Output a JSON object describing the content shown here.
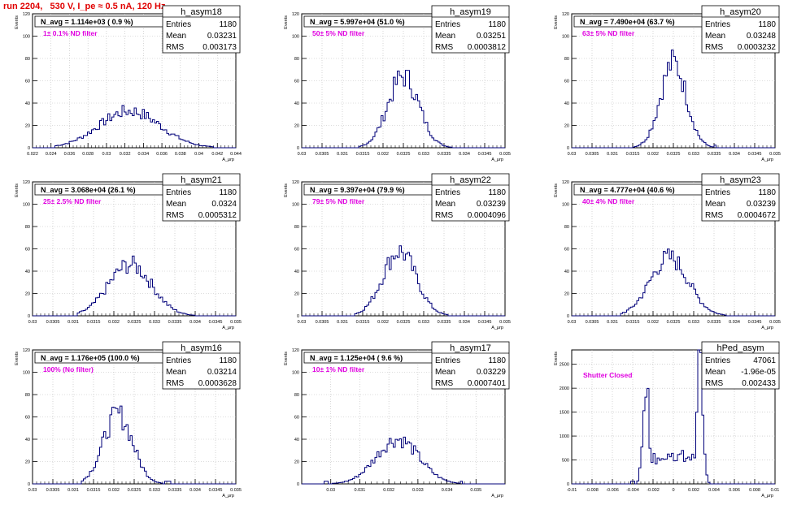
{
  "page": {
    "title": "run 2204,   530 V, I_pe ≈ 0.5 nA, 120 Hz"
  },
  "colors": {
    "hist": "#00007a",
    "annot": "#e000e0",
    "title": "#e00000",
    "grid": "#bbbbbb"
  },
  "chart_data": [
    {
      "type": "histogram",
      "name": "h_asym18",
      "title": "N_avg = 1.114e+03 ( 0.9 %)",
      "annotation": "1± 0.1% ND filter",
      "stats": {
        "Entries": "1180",
        "Mean": "0.03231",
        "RMS": "0.003173"
      },
      "xlabel": "A_μrp",
      "ylabel": "Events",
      "xlim": [
        0.022,
        0.044
      ],
      "ylim": [
        0,
        120
      ],
      "xticks": [
        "0.022",
        "0.024",
        "0.026",
        "0.028",
        "0.03",
        "0.032",
        "0.034",
        "0.036",
        "0.038",
        "0.04",
        "0.042",
        "0.044"
      ],
      "yticks": [
        "0",
        "20",
        "40",
        "60",
        "80",
        "100",
        "120"
      ],
      "peaks": [
        {
          "x": 0.0325,
          "w": 0.0033,
          "h": 33
        }
      ],
      "bin_lim": [
        0.0245,
        0.0415
      ]
    },
    {
      "type": "histogram",
      "name": "h_asym19",
      "title": "N_avg = 5.997e+04 (51.0 %)",
      "annotation": "50± 5% ND filter",
      "stats": {
        "Entries": "1180",
        "Mean": "0.03251",
        "RMS": "0.0003812"
      },
      "xlabel": "A_μrp",
      "ylabel": "Events",
      "xlim": [
        0.03,
        0.035
      ],
      "ylim": [
        0,
        120
      ],
      "xticks": [
        "0.03",
        "0.0305",
        "0.031",
        "0.0315",
        "0.032",
        "0.0325",
        "0.033",
        "0.0335",
        "0.034",
        "0.0345",
        "0.035"
      ],
      "yticks": [
        "0",
        "20",
        "40",
        "60",
        "80",
        "100",
        "120"
      ],
      "peaks": [
        {
          "x": 0.0325,
          "w": 0.00038,
          "h": 64
        }
      ],
      "bin_lim": [
        0.0314,
        0.0337
      ]
    },
    {
      "type": "histogram",
      "name": "h_asym20",
      "title": "N_avg = 7.490e+04 (63.7 %)",
      "annotation": "63± 5% ND filter",
      "stats": {
        "Entries": "1180",
        "Mean": "0.03248",
        "RMS": "0.0003232"
      },
      "xlabel": "A_μrp",
      "ylabel": "Events",
      "xlim": [
        0.03,
        0.035
      ],
      "ylim": [
        0,
        120
      ],
      "xticks": [
        "0.03",
        "0.0305",
        "0.031",
        "0.0315",
        "0.032",
        "0.0325",
        "0.033",
        "0.0335",
        "0.034",
        "0.0345",
        "0.035"
      ],
      "yticks": [
        "0",
        "20",
        "40",
        "60",
        "80",
        "100",
        "120"
      ],
      "peaks": [
        {
          "x": 0.0325,
          "w": 0.00032,
          "h": 76
        }
      ],
      "bin_lim": [
        0.0315,
        0.0336
      ]
    },
    {
      "type": "histogram",
      "name": "h_asym21",
      "title": "N_avg = 3.068e+04 (26.1 %)",
      "annotation": "25± 2.5% ND filter",
      "stats": {
        "Entries": "1180",
        "Mean": "0.0324",
        "RMS": "0.0005312"
      },
      "xlabel": "A_μrp",
      "ylabel": "Events",
      "xlim": [
        0.03,
        0.035
      ],
      "ylim": [
        0,
        120
      ],
      "xticks": [
        "0.03",
        "0.0305",
        "0.031",
        "0.0315",
        "0.032",
        "0.0325",
        "0.033",
        "0.0335",
        "0.034",
        "0.0345",
        "0.035"
      ],
      "yticks": [
        "0",
        "20",
        "40",
        "60",
        "80",
        "100",
        "120"
      ],
      "peaks": [
        {
          "x": 0.0324,
          "w": 0.00053,
          "h": 46
        }
      ],
      "bin_lim": [
        0.0311,
        0.034
      ]
    },
    {
      "type": "histogram",
      "name": "h_asym22",
      "title": "N_avg = 9.397e+04 (79.9 %)",
      "annotation": "79± 5% ND filter",
      "stats": {
        "Entries": "1180",
        "Mean": "0.03239",
        "RMS": "0.0004096"
      },
      "xlabel": "A_μrp",
      "ylabel": "Events",
      "xlim": [
        0.03,
        0.035
      ],
      "ylim": [
        0,
        120
      ],
      "xticks": [
        "0.03",
        "0.0305",
        "0.031",
        "0.0315",
        "0.032",
        "0.0325",
        "0.033",
        "0.0335",
        "0.034",
        "0.0345",
        "0.035"
      ],
      "yticks": [
        "0",
        "20",
        "40",
        "60",
        "80",
        "100",
        "120"
      ],
      "peaks": [
        {
          "x": 0.0324,
          "w": 0.00041,
          "h": 58
        }
      ],
      "bin_lim": [
        0.0313,
        0.0336
      ]
    },
    {
      "type": "histogram",
      "name": "h_asym23",
      "title": "N_avg = 4.777e+04 (40.6 %)",
      "annotation": "40± 4% ND filter",
      "stats": {
        "Entries": "1180",
        "Mean": "0.03239",
        "RMS": "0.0004672"
      },
      "xlabel": "A_μrp",
      "ylabel": "Events",
      "xlim": [
        0.03,
        0.035
      ],
      "ylim": [
        0,
        120
      ],
      "xticks": [
        "0.03",
        "0.0305",
        "0.031",
        "0.0315",
        "0.032",
        "0.0325",
        "0.033",
        "0.0335",
        "0.034",
        "0.0345",
        "0.035"
      ],
      "yticks": [
        "0",
        "20",
        "40",
        "60",
        "80",
        "100",
        "120"
      ],
      "peaks": [
        {
          "x": 0.0324,
          "w": 0.00047,
          "h": 52
        }
      ],
      "bin_lim": [
        0.0312,
        0.0338
      ]
    },
    {
      "type": "histogram",
      "name": "h_asym16",
      "title": "N_avg = 1.176e+05 (100.0 %)",
      "annotation": "100% (No filter)",
      "stats": {
        "Entries": "1180",
        "Mean": "0.03214",
        "RMS": "0.0003628"
      },
      "xlabel": "A_μrp",
      "ylabel": "Events",
      "xlim": [
        0.03,
        0.035
      ],
      "ylim": [
        0,
        120
      ],
      "xticks": [
        "0.03",
        "0.0305",
        "0.031",
        "0.0315",
        "0.032",
        "0.0325",
        "0.033",
        "0.0335",
        "0.034",
        "0.0345",
        "0.035"
      ],
      "yticks": [
        "0",
        "20",
        "40",
        "60",
        "80",
        "100",
        "120"
      ],
      "peaks": [
        {
          "x": 0.0321,
          "w": 0.00036,
          "h": 62
        }
      ],
      "bin_lim": [
        0.0312,
        0.0334
      ]
    },
    {
      "type": "histogram",
      "name": "h_asym17",
      "title": "N_avg = 1.125e+04 ( 9.6 %)",
      "annotation": "10± 1% ND filter",
      "stats": {
        "Entries": "1180",
        "Mean": "0.03229",
        "RMS": "0.0007401"
      },
      "xlabel": "A_μrp",
      "ylabel": "Events",
      "xlim": [
        0.029,
        0.036
      ],
      "ylim": [
        0,
        120
      ],
      "xticks": [
        "0.03",
        "0.031",
        "0.032",
        "0.033",
        "0.034",
        "0.035"
      ],
      "xtick_values": [
        0.03,
        0.031,
        0.032,
        0.033,
        0.034,
        0.035
      ],
      "yticks": [
        "0",
        "20",
        "40",
        "60",
        "80",
        "100",
        "120"
      ],
      "peaks": [
        {
          "x": 0.0323,
          "w": 0.00074,
          "h": 40
        }
      ],
      "bin_lim": [
        0.0298,
        0.0346
      ]
    },
    {
      "type": "histogram",
      "name": "hPed_asym",
      "title": "",
      "annotation": "Shutter Closed",
      "stats": {
        "Entries": "47061",
        "Mean": "-1.96e-05",
        "RMS": "0.002433"
      },
      "xlabel": "A_μrp",
      "ylabel": "Events",
      "xlim": [
        -0.01,
        0.01
      ],
      "ylim": [
        0,
        2800
      ],
      "xticks": [
        "-0.01",
        "-0.008",
        "-0.006",
        "-0.004",
        "-0.002",
        "0",
        "0.002",
        "0.004",
        "0.006",
        "0.008",
        "0.01"
      ],
      "yticks": [
        "0",
        "500",
        "1000",
        "1500",
        "2000",
        "2500"
      ],
      "peaks": [
        {
          "x": -0.0027,
          "w": 0.0003,
          "h": 2200
        },
        {
          "x": 0.0026,
          "w": 0.0003,
          "h": 2650
        }
      ],
      "plateau": 560,
      "bin_lim": [
        -0.0042,
        0.004
      ]
    }
  ]
}
